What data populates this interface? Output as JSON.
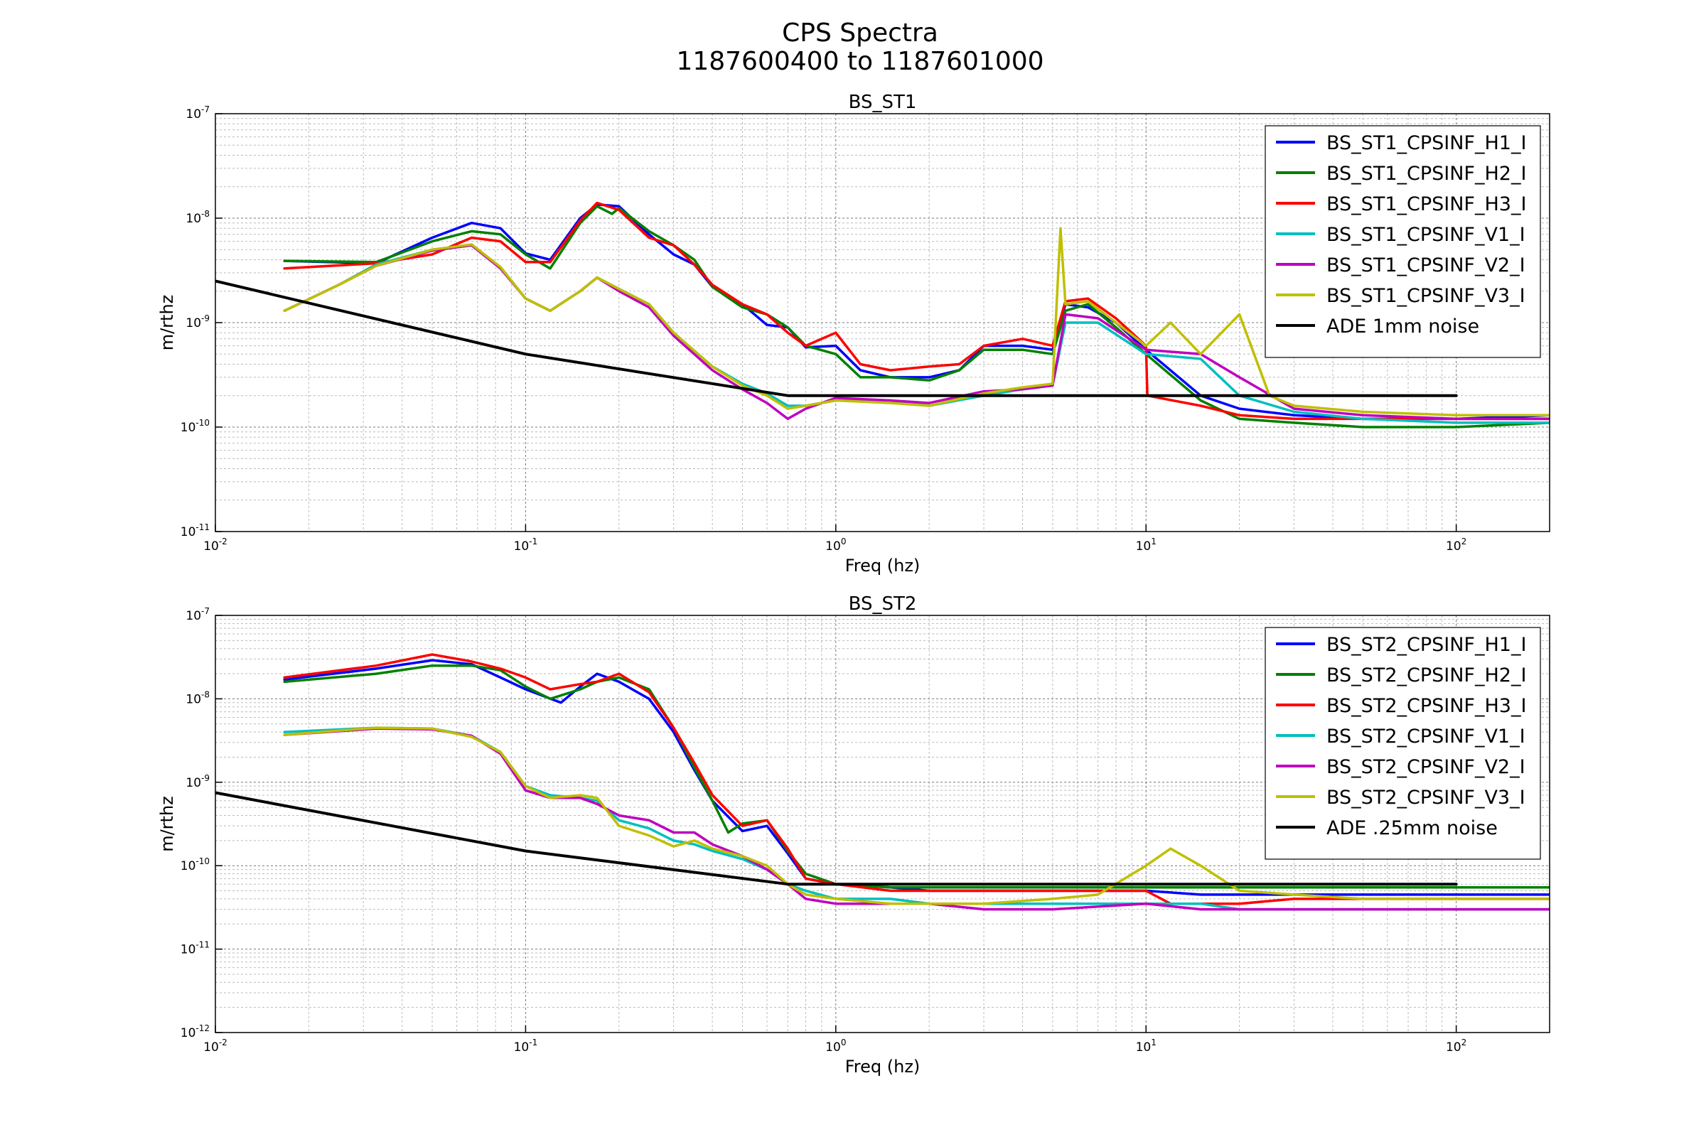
{
  "figure": {
    "title_line1": "CPS Spectra",
    "title_line2": "1187600400 to 1187601000"
  },
  "chart_data": [
    {
      "type": "line",
      "title": "BS_ST1",
      "xlabel": "Freq (hz)",
      "ylabel": "m/rthz",
      "xscale": "log",
      "yscale": "log",
      "xlim": [
        0.01,
        200
      ],
      "ylim": [
        1e-11,
        1e-07
      ],
      "grid": true,
      "legend": "top-right",
      "x_ticks": [
        {
          "base": "10",
          "exp": "-2"
        },
        {
          "base": "10",
          "exp": "-1"
        },
        {
          "base": "10",
          "exp": "0"
        },
        {
          "base": "10",
          "exp": "1"
        },
        {
          "base": "10",
          "exp": "2"
        }
      ],
      "y_ticks": [
        {
          "base": "10",
          "exp": "-11"
        },
        {
          "base": "10",
          "exp": "-10"
        },
        {
          "base": "10",
          "exp": "-9"
        },
        {
          "base": "10",
          "exp": "-8"
        },
        {
          "base": "10",
          "exp": "-7"
        }
      ],
      "series": [
        {
          "name": "BS_ST1_CPSINF_H1_I",
          "color": "#0000ff",
          "x": [
            0.0167,
            0.033,
            0.05,
            0.067,
            0.083,
            0.1,
            0.12,
            0.15,
            0.17,
            0.2,
            0.25,
            0.3,
            0.35,
            0.4,
            0.5,
            0.6,
            0.7,
            0.8,
            1.0,
            1.2,
            1.5,
            2.0,
            2.5,
            3.0,
            4.0,
            5.0,
            5.5,
            6.5,
            8.0,
            10,
            15,
            20,
            30,
            50,
            100,
            200
          ],
          "y": [
            3.9e-09,
            3.7e-09,
            6.5e-09,
            9e-09,
            8e-09,
            4.6e-09,
            4e-09,
            1e-08,
            1.35e-08,
            1.3e-08,
            7e-09,
            4.5e-09,
            3.6e-09,
            2.2e-09,
            1.5e-09,
            9.5e-10,
            9e-10,
            5.8e-10,
            6e-10,
            3.5e-10,
            3e-10,
            3e-10,
            3.5e-10,
            6e-10,
            6e-10,
            5.5e-10,
            1.5e-09,
            1.4e-09,
            1e-09,
            5.5e-10,
            2e-10,
            1.5e-10,
            1.3e-10,
            1.2e-10,
            1.2e-10,
            1.3e-10
          ]
        },
        {
          "name": "BS_ST1_CPSINF_H2_I",
          "color": "#008000",
          "x": [
            0.0167,
            0.033,
            0.05,
            0.067,
            0.083,
            0.1,
            0.12,
            0.15,
            0.17,
            0.19,
            0.2,
            0.25,
            0.3,
            0.35,
            0.4,
            0.5,
            0.6,
            0.7,
            0.8,
            1.0,
            1.2,
            1.5,
            2.0,
            2.5,
            3.0,
            4.0,
            5.0,
            5.5,
            6.5,
            8.0,
            10,
            15,
            20,
            30,
            50,
            100,
            200
          ],
          "y": [
            3.9e-09,
            3.8e-09,
            6e-09,
            7.5e-09,
            7e-09,
            4.5e-09,
            3.3e-09,
            9e-09,
            1.3e-08,
            1.1e-08,
            1.25e-08,
            7.5e-09,
            5.5e-09,
            4e-09,
            2.2e-09,
            1.4e-09,
            1.2e-09,
            9e-10,
            6e-10,
            5e-10,
            3e-10,
            3e-10,
            2.8e-10,
            3.5e-10,
            5.5e-10,
            5.5e-10,
            5e-10,
            1.3e-09,
            1.5e-09,
            9e-10,
            5e-10,
            1.8e-10,
            1.2e-10,
            1.1e-10,
            1e-10,
            1e-10,
            1.1e-10
          ]
        },
        {
          "name": "BS_ST1_CPSINF_H3_I",
          "color": "#ff0000",
          "x": [
            0.0167,
            0.033,
            0.05,
            0.067,
            0.083,
            0.1,
            0.12,
            0.15,
            0.17,
            0.2,
            0.25,
            0.3,
            0.35,
            0.4,
            0.5,
            0.6,
            0.7,
            0.8,
            1.0,
            1.2,
            1.5,
            2.0,
            2.5,
            3.0,
            4.0,
            5.0,
            5.5,
            6.5,
            8.0,
            10,
            10.1,
            15,
            20,
            30,
            50,
            100,
            200
          ],
          "y": [
            3.3e-09,
            3.7e-09,
            4.5e-09,
            6.5e-09,
            6e-09,
            3.8e-09,
            3.8e-09,
            9.5e-09,
            1.4e-08,
            1.2e-08,
            6.5e-09,
            5.5e-09,
            3.6e-09,
            2.3e-09,
            1.5e-09,
            1.2e-09,
            8e-10,
            6e-10,
            8e-10,
            4e-10,
            3.5e-10,
            3.8e-10,
            4e-10,
            6e-10,
            7e-10,
            6e-10,
            1.6e-09,
            1.7e-09,
            1.1e-09,
            6e-10,
            2e-10,
            1.6e-10,
            1.3e-10,
            1.2e-10,
            1.2e-10,
            1.2e-10,
            1.2e-10
          ]
        },
        {
          "name": "BS_ST1_CPSINF_V1_I",
          "color": "#00bfbf",
          "x": [
            0.0167,
            0.025,
            0.033,
            0.05,
            0.067,
            0.083,
            0.1,
            0.12,
            0.15,
            0.17,
            0.2,
            0.25,
            0.3,
            0.4,
            0.5,
            0.6,
            0.7,
            0.8,
            1.0,
            1.5,
            2.0,
            3.0,
            4.0,
            5.0,
            5.5,
            7.0,
            10,
            15,
            20,
            30,
            50,
            100,
            200
          ],
          "y": [
            1.3e-09,
            2.3e-09,
            3.6e-09,
            5e-09,
            5.5e-09,
            3.4e-09,
            1.7e-09,
            1.3e-09,
            2e-09,
            2.7e-09,
            2.1e-09,
            1.5e-09,
            8e-10,
            3.8e-10,
            2.6e-10,
            2.1e-10,
            1.6e-10,
            1.6e-10,
            1.8e-10,
            1.8e-10,
            1.6e-10,
            2e-10,
            2.3e-10,
            2.5e-10,
            1e-09,
            1e-09,
            5e-10,
            4.5e-10,
            2e-10,
            1.4e-10,
            1.2e-10,
            1.1e-10,
            1.1e-10
          ]
        },
        {
          "name": "BS_ST1_CPSINF_V2_I",
          "color": "#bf00bf",
          "x": [
            0.0167,
            0.025,
            0.033,
            0.05,
            0.067,
            0.083,
            0.1,
            0.12,
            0.15,
            0.17,
            0.2,
            0.25,
            0.3,
            0.4,
            0.5,
            0.6,
            0.7,
            0.8,
            1.0,
            1.5,
            2.0,
            3.0,
            4.0,
            5.0,
            5.5,
            7.0,
            10,
            15,
            20,
            30,
            50,
            100,
            200
          ],
          "y": [
            1.3e-09,
            2.3e-09,
            3.5e-09,
            4.9e-09,
            5.5e-09,
            3.3e-09,
            1.7e-09,
            1.3e-09,
            2e-09,
            2.7e-09,
            2e-09,
            1.4e-09,
            7.5e-10,
            3.5e-10,
            2.3e-10,
            1.7e-10,
            1.2e-10,
            1.5e-10,
            1.9e-10,
            1.8e-10,
            1.7e-10,
            2.2e-10,
            2.3e-10,
            2.5e-10,
            1.2e-09,
            1.1e-09,
            5.5e-10,
            5e-10,
            3e-10,
            1.5e-10,
            1.3e-10,
            1.2e-10,
            1.2e-10
          ]
        },
        {
          "name": "BS_ST1_CPSINF_V3_I",
          "color": "#bfbf00",
          "x": [
            0.0167,
            0.025,
            0.033,
            0.05,
            0.067,
            0.083,
            0.1,
            0.12,
            0.15,
            0.17,
            0.2,
            0.25,
            0.3,
            0.4,
            0.5,
            0.6,
            0.7,
            0.8,
            1.0,
            1.5,
            2.0,
            3.0,
            4.0,
            5.0,
            5.3,
            5.5,
            6.5,
            8.0,
            10,
            12,
            15,
            20,
            25,
            30,
            50,
            100,
            200
          ],
          "y": [
            1.3e-09,
            2.3e-09,
            3.5e-09,
            5e-09,
            5.6e-09,
            3.4e-09,
            1.7e-09,
            1.3e-09,
            2e-09,
            2.7e-09,
            2.1e-09,
            1.5e-09,
            8e-10,
            3.8e-10,
            2.5e-10,
            2e-10,
            1.5e-10,
            1.6e-10,
            1.8e-10,
            1.7e-10,
            1.6e-10,
            2.1e-10,
            2.4e-10,
            2.6e-10,
            8e-09,
            1.5e-09,
            1.6e-09,
            1e-09,
            6e-10,
            1e-09,
            5e-10,
            1.2e-09,
            2e-10,
            1.6e-10,
            1.4e-10,
            1.3e-10,
            1.3e-10
          ]
        },
        {
          "name": "ADE 1mm noise",
          "color": "#000000",
          "x": [
            0.01,
            0.1,
            0.7,
            100
          ],
          "y": [
            2.5e-09,
            5e-10,
            2e-10,
            2e-10
          ]
        }
      ]
    },
    {
      "type": "line",
      "title": "BS_ST2",
      "xlabel": "Freq (hz)",
      "ylabel": "m/rthz",
      "xscale": "log",
      "yscale": "log",
      "xlim": [
        0.01,
        200
      ],
      "ylim": [
        1e-12,
        1e-07
      ],
      "grid": true,
      "legend": "top-right",
      "x_ticks": [
        {
          "base": "10",
          "exp": "-2"
        },
        {
          "base": "10",
          "exp": "-1"
        },
        {
          "base": "10",
          "exp": "0"
        },
        {
          "base": "10",
          "exp": "1"
        },
        {
          "base": "10",
          "exp": "2"
        }
      ],
      "y_ticks": [
        {
          "base": "10",
          "exp": "-12"
        },
        {
          "base": "10",
          "exp": "-11"
        },
        {
          "base": "10",
          "exp": "-10"
        },
        {
          "base": "10",
          "exp": "-9"
        },
        {
          "base": "10",
          "exp": "-8"
        },
        {
          "base": "10",
          "exp": "-7"
        }
      ],
      "series": [
        {
          "name": "BS_ST2_CPSINF_H1_I",
          "color": "#0000ff",
          "x": [
            0.0167,
            0.033,
            0.05,
            0.067,
            0.083,
            0.1,
            0.13,
            0.15,
            0.17,
            0.2,
            0.25,
            0.3,
            0.35,
            0.4,
            0.5,
            0.6,
            0.7,
            0.8,
            1.0,
            1.5,
            2.0,
            3.0,
            5.0,
            10,
            15,
            20,
            30,
            50,
            100,
            200
          ],
          "y": [
            1.7e-08,
            2.3e-08,
            2.9e-08,
            2.6e-08,
            1.8e-08,
            1.3e-08,
            9e-09,
            1.4e-08,
            2e-08,
            1.6e-08,
            1e-08,
            4e-09,
            1.4e-09,
            6e-10,
            2.6e-10,
            3e-10,
            1.4e-10,
            7e-11,
            6e-11,
            5.5e-11,
            5e-11,
            5e-11,
            5e-11,
            5e-11,
            4.5e-11,
            4.5e-11,
            4.5e-11,
            4.5e-11,
            4.5e-11,
            4.5e-11
          ]
        },
        {
          "name": "BS_ST2_CPSINF_H2_I",
          "color": "#008000",
          "x": [
            0.0167,
            0.033,
            0.05,
            0.067,
            0.083,
            0.1,
            0.12,
            0.15,
            0.17,
            0.2,
            0.25,
            0.3,
            0.35,
            0.4,
            0.45,
            0.5,
            0.6,
            0.7,
            0.8,
            1.0,
            1.5,
            2.0,
            3.0,
            5.0,
            10,
            15,
            20,
            30,
            50,
            100,
            200
          ],
          "y": [
            1.6e-08,
            2e-08,
            2.5e-08,
            2.5e-08,
            2.2e-08,
            1.4e-08,
            1e-08,
            1.3e-08,
            1.6e-08,
            1.8e-08,
            1.3e-08,
            4.5e-09,
            1.5e-09,
            6e-10,
            2.5e-10,
            3.2e-10,
            3.5e-10,
            1.5e-10,
            8e-11,
            6e-11,
            5.5e-11,
            5.5e-11,
            5.5e-11,
            5.5e-11,
            5.5e-11,
            5.5e-11,
            5.5e-11,
            5.5e-11,
            5.5e-11,
            5.5e-11,
            5.5e-11
          ]
        },
        {
          "name": "BS_ST2_CPSINF_H3_I",
          "color": "#ff0000",
          "x": [
            0.0167,
            0.033,
            0.05,
            0.067,
            0.083,
            0.1,
            0.12,
            0.15,
            0.17,
            0.2,
            0.25,
            0.3,
            0.35,
            0.4,
            0.5,
            0.6,
            0.7,
            0.8,
            1.0,
            1.5,
            2.0,
            3.0,
            5.0,
            10,
            12,
            15,
            20,
            30,
            50,
            100,
            200
          ],
          "y": [
            1.8e-08,
            2.5e-08,
            3.4e-08,
            2.8e-08,
            2.3e-08,
            1.8e-08,
            1.3e-08,
            1.5e-08,
            1.6e-08,
            2e-08,
            1.2e-08,
            4.5e-09,
            1.7e-09,
            7e-10,
            3e-10,
            3.5e-10,
            1.6e-10,
            7e-11,
            6e-11,
            5e-11,
            5e-11,
            5e-11,
            5e-11,
            5e-11,
            3.5e-11,
            3.5e-11,
            3.5e-11,
            4e-11,
            4e-11,
            4e-11,
            4e-11
          ]
        },
        {
          "name": "BS_ST2_CPSINF_V1_I",
          "color": "#00bfbf",
          "x": [
            0.0167,
            0.033,
            0.05,
            0.067,
            0.083,
            0.1,
            0.12,
            0.15,
            0.17,
            0.2,
            0.25,
            0.3,
            0.35,
            0.4,
            0.5,
            0.6,
            0.7,
            0.8,
            1.0,
            1.5,
            2.0,
            3.0,
            5.0,
            10,
            15,
            20,
            30,
            50,
            100,
            200
          ],
          "y": [
            4e-09,
            4.5e-09,
            4.4e-09,
            3.6e-09,
            2.3e-09,
            9e-10,
            7e-10,
            6.5e-10,
            6e-10,
            3.5e-10,
            2.8e-10,
            2e-10,
            1.8e-10,
            1.5e-10,
            1.2e-10,
            9e-11,
            6e-11,
            5e-11,
            4e-11,
            4e-11,
            3.5e-11,
            3.5e-11,
            3.5e-11,
            3.5e-11,
            3.5e-11,
            3e-11,
            3e-11,
            3e-11,
            3e-11,
            3e-11
          ]
        },
        {
          "name": "BS_ST2_CPSINF_V2_I",
          "color": "#bf00bf",
          "x": [
            0.0167,
            0.033,
            0.05,
            0.067,
            0.083,
            0.1,
            0.12,
            0.15,
            0.17,
            0.2,
            0.25,
            0.3,
            0.35,
            0.4,
            0.5,
            0.6,
            0.7,
            0.8,
            1.0,
            1.5,
            2.0,
            3.0,
            5.0,
            10,
            15,
            20,
            30,
            50,
            100,
            200
          ],
          "y": [
            3.7e-09,
            4.4e-09,
            4.3e-09,
            3.6e-09,
            2.2e-09,
            8e-10,
            6.5e-10,
            6.5e-10,
            5.5e-10,
            4e-10,
            3.5e-10,
            2.5e-10,
            2.5e-10,
            1.8e-10,
            1.3e-10,
            9e-11,
            6e-11,
            4e-11,
            3.5e-11,
            3.5e-11,
            3.5e-11,
            3e-11,
            3e-11,
            3.5e-11,
            3e-11,
            3e-11,
            3e-11,
            3e-11,
            3e-11,
            3e-11
          ]
        },
        {
          "name": "BS_ST2_CPSINF_V3_I",
          "color": "#bfbf00",
          "x": [
            0.0167,
            0.033,
            0.05,
            0.067,
            0.083,
            0.1,
            0.12,
            0.15,
            0.17,
            0.2,
            0.25,
            0.3,
            0.35,
            0.4,
            0.5,
            0.6,
            0.7,
            0.8,
            1.0,
            1.5,
            2.0,
            3.0,
            5.0,
            7.0,
            10,
            12,
            15,
            20,
            30,
            50,
            100,
            200
          ],
          "y": [
            3.7e-09,
            4.5e-09,
            4.4e-09,
            3.5e-09,
            2.3e-09,
            9e-10,
            6.5e-10,
            7e-10,
            6.5e-10,
            3e-10,
            2.3e-10,
            1.7e-10,
            2e-10,
            1.6e-10,
            1.3e-10,
            1e-10,
            6e-11,
            4.5e-11,
            4e-11,
            3.5e-11,
            3.5e-11,
            3.5e-11,
            4e-11,
            4.5e-11,
            1e-10,
            1.6e-10,
            1e-10,
            5e-11,
            4.5e-11,
            4e-11,
            4e-11,
            4e-11
          ]
        },
        {
          "name": "ADE .25mm noise",
          "color": "#000000",
          "x": [
            0.01,
            0.1,
            0.7,
            100
          ],
          "y": [
            7.5e-10,
            1.5e-10,
            6e-11,
            6e-11
          ]
        }
      ]
    }
  ]
}
